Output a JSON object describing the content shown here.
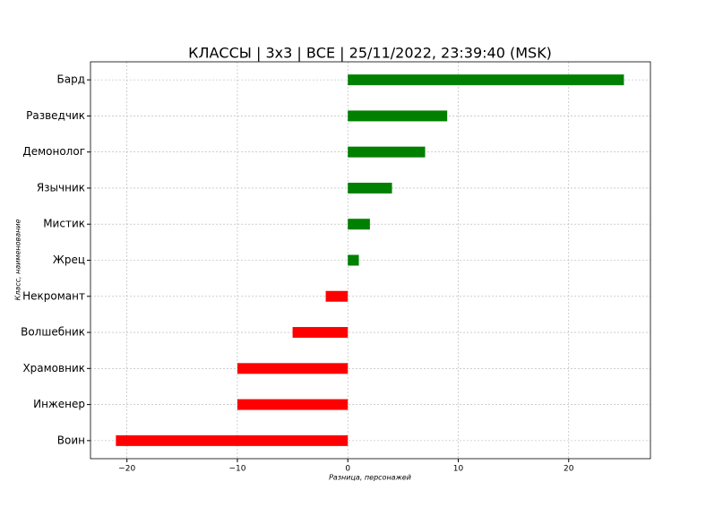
{
  "chart_data": {
    "type": "barh",
    "title": "КЛАССЫ | 3x3 | ВСЕ | 25/11/2022, 23:39:40 (MSK)",
    "xlabel": "Разница, персонажей",
    "ylabel": "Класс, наименование",
    "categories": [
      "Бард",
      "Разведчик",
      "Демонолог",
      "Язычник",
      "Мистик",
      "Жрец",
      "Некромант",
      "Волшебник",
      "Храмовник",
      "Инженер",
      "Воин"
    ],
    "values": [
      25,
      9,
      7,
      4,
      2,
      1,
      -2,
      -5,
      -10,
      -10,
      -21
    ],
    "positive_color": "#008000",
    "negative_color": "#ff0000",
    "xlim": [
      -23.3,
      27.4
    ],
    "xticks": [
      {
        "value": -20,
        "label": "−20"
      },
      {
        "value": -10,
        "label": "−10"
      },
      0,
      10,
      20
    ],
    "grid": true
  }
}
